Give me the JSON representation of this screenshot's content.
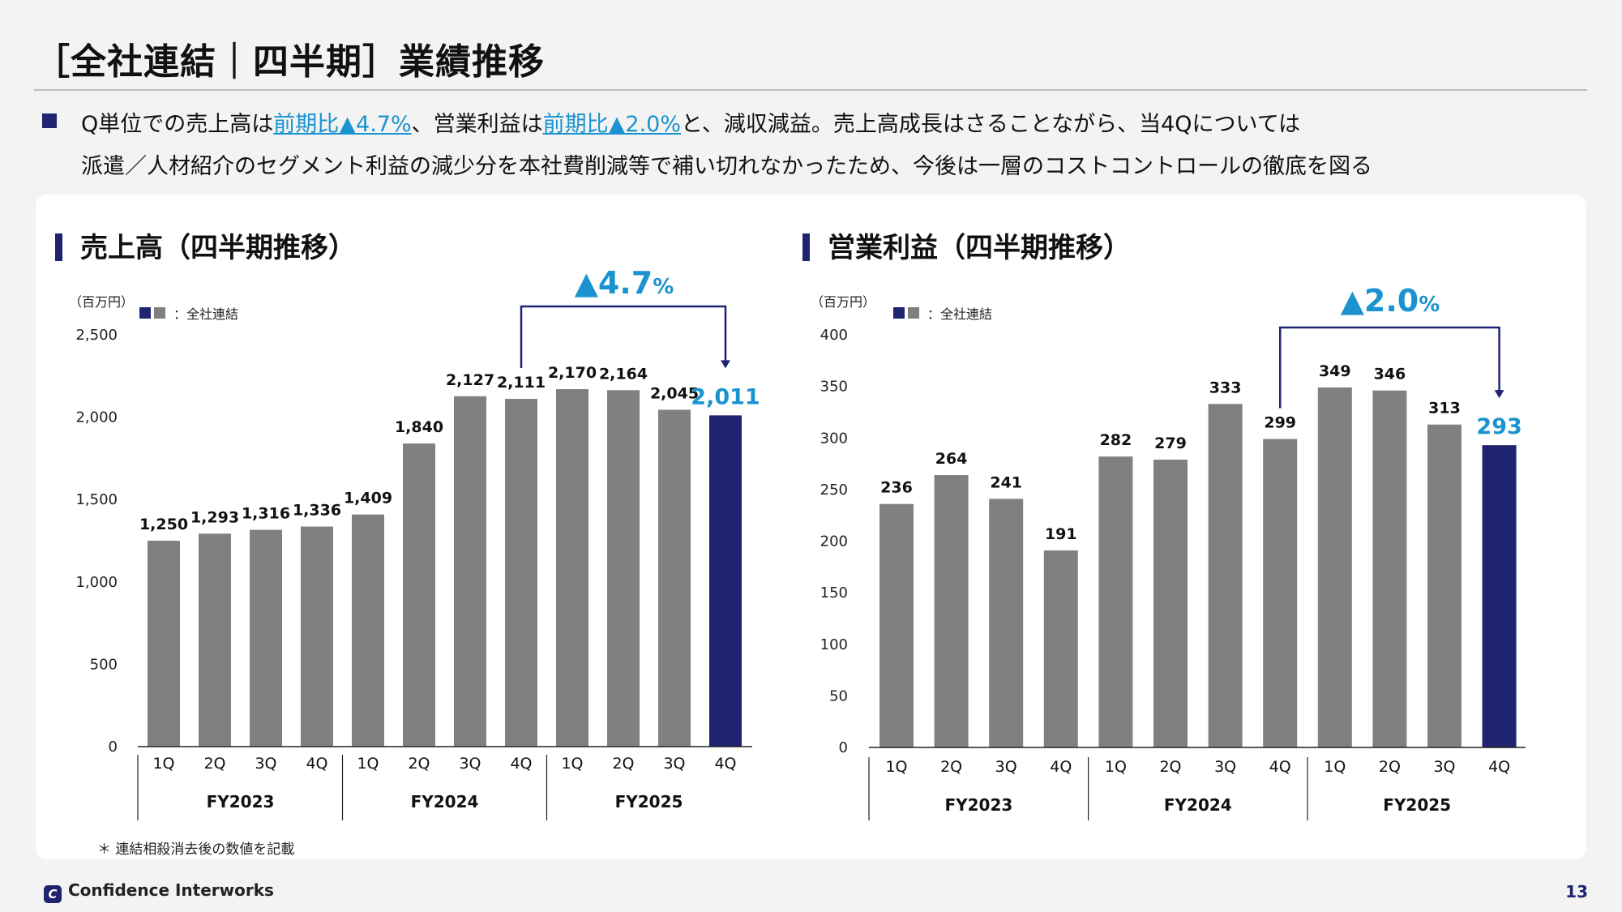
{
  "page": {
    "title": "［全社連結｜四半期］業績推移",
    "summary": {
      "t1": "Q単位での売上高は",
      "h1": "前期比▲4.7%",
      "t2": "、営業利益は",
      "h2": "前期比▲2.0%",
      "t3": "と、減収減益。売上高成長はさることながら、当4Qについては",
      "line2": "派遣／人材紹介のセグメント利益の減少分を本社費削減等で補い切れなかったため、今後は一層のコストコントロールの徹底を図る"
    },
    "footnote": "＊ 連結相殺消去後の数値を記載",
    "brand": "Confidence Interworks",
    "page_number": "13"
  },
  "colors": {
    "bar": "#808080",
    "highlight_bar": "#1f2470",
    "accent": "#1a93d0",
    "navy": "#1f2470"
  },
  "chart_data": [
    {
      "type": "bar",
      "title": "売上高（四半期推移）",
      "unit_label": "（百万円）",
      "legend_label": "：全社連結",
      "categories": [
        "1Q",
        "2Q",
        "3Q",
        "4Q",
        "1Q",
        "2Q",
        "3Q",
        "4Q",
        "1Q",
        "2Q",
        "3Q",
        "4Q"
      ],
      "groups": [
        "FY2023",
        "FY2024",
        "FY2025"
      ],
      "values": [
        1250,
        1293,
        1316,
        1336,
        1409,
        1840,
        2127,
        2111,
        2170,
        2164,
        2045,
        2011
      ],
      "value_labels": [
        "1,250",
        "1,293",
        "1,316",
        "1,336",
        "1,409",
        "1,840",
        "2,127",
        "2,111",
        "2,170",
        "2,164",
        "2,045",
        "2,011"
      ],
      "highlight_index": 11,
      "ylim": [
        0,
        2500
      ],
      "yticks": [
        0,
        500,
        1000,
        1500,
        2000,
        2500
      ],
      "ytick_labels": [
        "0",
        "500",
        "1,000",
        "1,500",
        "2,000",
        "2,500"
      ],
      "annotation": {
        "text": "▲4.7",
        "suffix": "%",
        "from_index": 7,
        "to_index": 11
      }
    },
    {
      "type": "bar",
      "title": "営業利益（四半期推移）",
      "unit_label": "（百万円）",
      "legend_label": "：全社連結",
      "categories": [
        "1Q",
        "2Q",
        "3Q",
        "4Q",
        "1Q",
        "2Q",
        "3Q",
        "4Q",
        "1Q",
        "2Q",
        "3Q",
        "4Q"
      ],
      "groups": [
        "FY2023",
        "FY2024",
        "FY2025"
      ],
      "values": [
        236,
        264,
        241,
        191,
        282,
        279,
        333,
        299,
        349,
        346,
        313,
        293
      ],
      "value_labels": [
        "236",
        "264",
        "241",
        "191",
        "282",
        "279",
        "333",
        "299",
        "349",
        "346",
        "313",
        "293"
      ],
      "highlight_index": 11,
      "ylim": [
        0,
        400
      ],
      "yticks": [
        0,
        50,
        100,
        150,
        200,
        250,
        300,
        350,
        400
      ],
      "ytick_labels": [
        "0",
        "50",
        "100",
        "150",
        "200",
        "250",
        "300",
        "350",
        "400"
      ],
      "annotation": {
        "text": "▲2.0",
        "suffix": "%",
        "from_index": 7,
        "to_index": 11
      }
    }
  ]
}
